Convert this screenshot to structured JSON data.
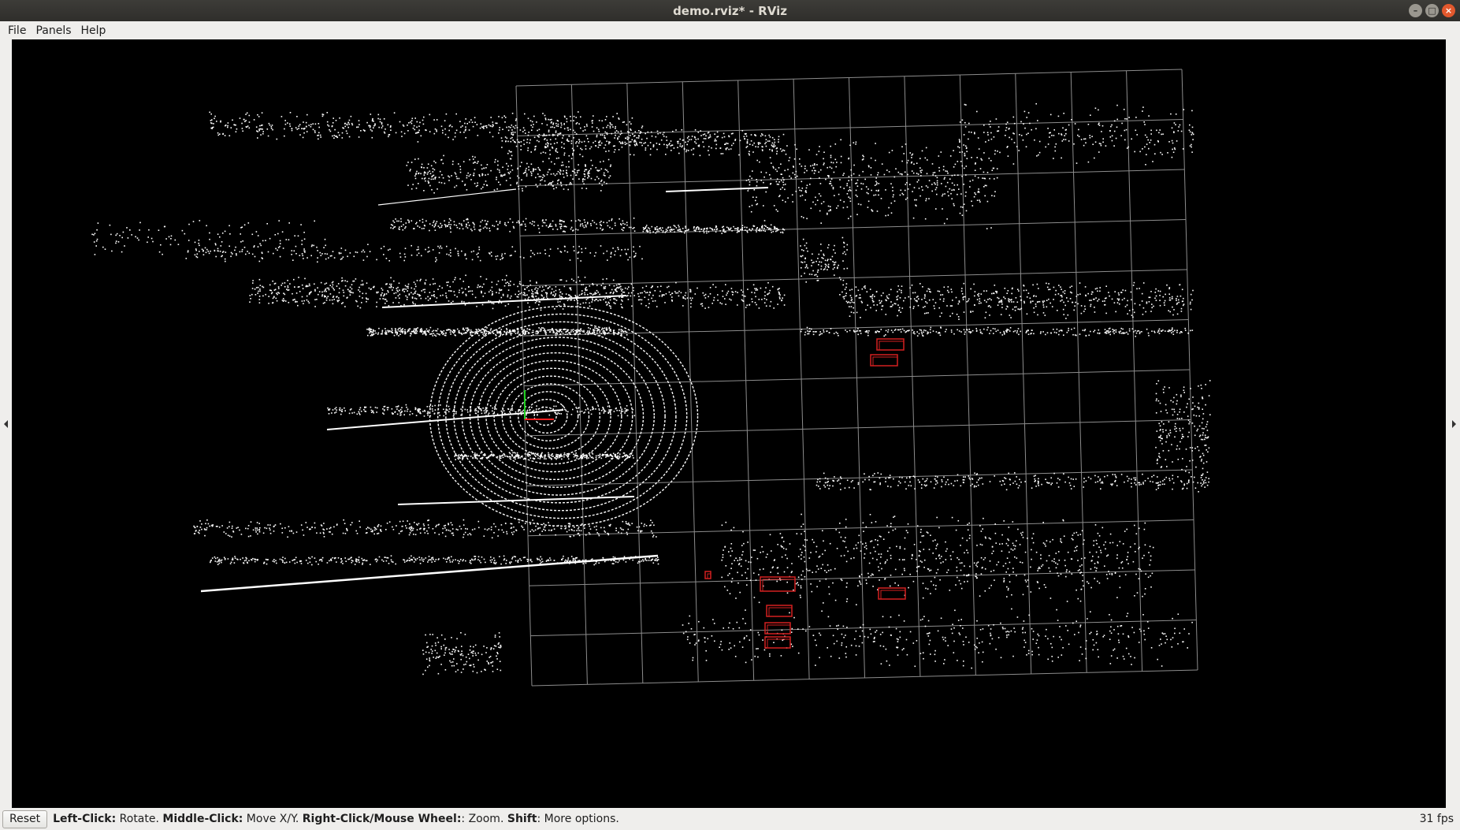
{
  "window": {
    "title": "demo.rviz* - RViz",
    "controls": {
      "minimize": "–",
      "maximize": "□",
      "close": "×"
    }
  },
  "menu": {
    "items": [
      {
        "label": "File"
      },
      {
        "label": "Panels"
      },
      {
        "label": "Help"
      }
    ]
  },
  "status": {
    "reset_label": "Reset",
    "hints": [
      {
        "key": "Left-Click:",
        "action": " Rotate. "
      },
      {
        "key": "Middle-Click:",
        "action": " Move X/Y. "
      },
      {
        "key": "Right-Click/Mouse Wheel:",
        "action": ": Zoom. "
      },
      {
        "key": "Shift",
        "action": ": More options."
      }
    ],
    "fps": "31 fps"
  },
  "scene": {
    "background": "#000000",
    "grid_color": "#8c8c8c",
    "point_color": "#ffffff",
    "bbox_color": "#d42020",
    "axis_colors": {
      "x": "#ff2020",
      "y": "#20d020"
    }
  }
}
